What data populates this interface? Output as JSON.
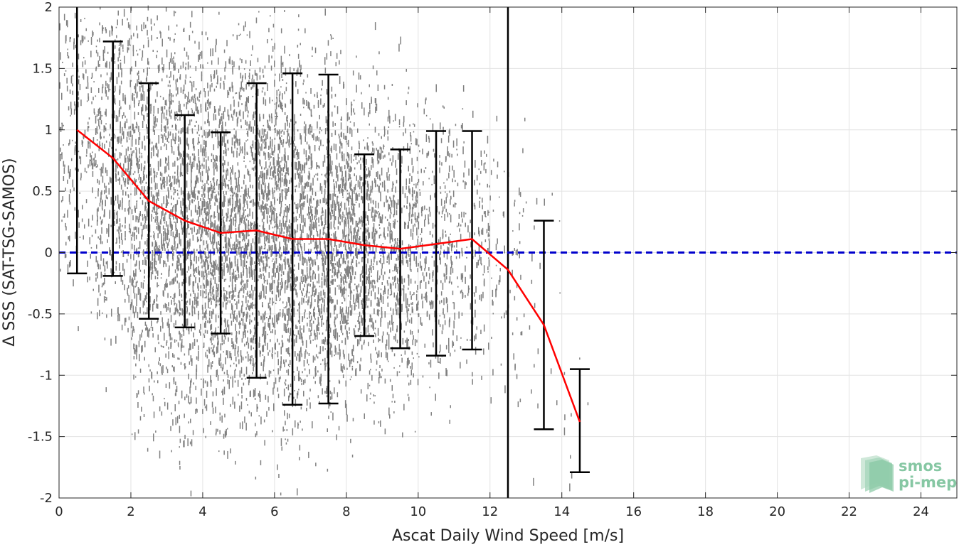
{
  "chart_data": {
    "type": "scatter",
    "title": "",
    "xlabel": "Ascat Daily Wind Speed [m/s]",
    "ylabel": "Δ SSS (SAT-TSG-SAMOS)",
    "xlim": [
      0,
      25
    ],
    "ylim": [
      -2,
      2
    ],
    "xticks": [
      0,
      2,
      4,
      6,
      8,
      10,
      12,
      14,
      16,
      18,
      20,
      22,
      24
    ],
    "yticks": [
      -2,
      -1.5,
      -1,
      -0.5,
      0,
      0.5,
      1,
      1.5,
      2
    ],
    "xtick_labels": [
      "0",
      "2",
      "4",
      "6",
      "8",
      "10",
      "12",
      "14",
      "16",
      "18",
      "20",
      "22",
      "24"
    ],
    "ytick_labels": [
      "-2",
      "-1.5",
      "-1",
      "-0.5",
      "0",
      "0.5",
      "1",
      "1.5",
      "2"
    ],
    "grid": true,
    "scatter_color": "#808080",
    "mean_line_color": "#ff0000",
    "zero_line_color": "#0000cc",
    "errorbar_color": "#000000",
    "zero_line": 0,
    "vertical_line_x": 12.5,
    "bins": {
      "x": [
        0.5,
        1.5,
        2.5,
        3.5,
        4.5,
        5.5,
        6.5,
        7.5,
        8.5,
        9.5,
        10.5,
        11.5,
        12.5,
        13.5,
        14.5
      ],
      "mean": [
        1.0,
        0.77,
        0.42,
        0.26,
        0.16,
        0.18,
        0.11,
        0.11,
        0.06,
        0.03,
        0.07,
        0.11,
        -0.14,
        -0.59,
        -1.38
      ],
      "lower": [
        -0.17,
        -0.19,
        -0.54,
        -0.61,
        -0.66,
        -1.02,
        -1.24,
        -1.23,
        -0.68,
        -0.78,
        -0.84,
        -0.79,
        null,
        -1.44,
        -1.79
      ],
      "upper": [
        2.18,
        1.72,
        1.38,
        1.12,
        0.98,
        1.38,
        1.46,
        1.45,
        0.8,
        0.84,
        0.99,
        0.99,
        null,
        0.26,
        -0.95
      ]
    },
    "scatter_density": {
      "x_bin_centers": [
        0.5,
        1.5,
        2.5,
        3.5,
        4.5,
        5.5,
        6.5,
        7.5,
        8.5,
        9.5,
        10.5,
        11.5,
        12.5,
        13.5,
        14.5
      ],
      "spread": [
        0.7,
        0.75,
        0.8,
        0.8,
        0.75,
        0.75,
        0.75,
        0.7,
        0.62,
        0.6,
        0.55,
        0.5,
        0.55,
        0.6,
        0.35
      ],
      "relative_count": [
        0.25,
        0.55,
        0.75,
        0.9,
        1.0,
        1.0,
        0.95,
        0.85,
        0.7,
        0.5,
        0.3,
        0.18,
        0.08,
        0.02,
        0.01
      ]
    },
    "logo": {
      "line1": "smos",
      "line2": "pi-mep",
      "color": "#86c7a3"
    }
  }
}
